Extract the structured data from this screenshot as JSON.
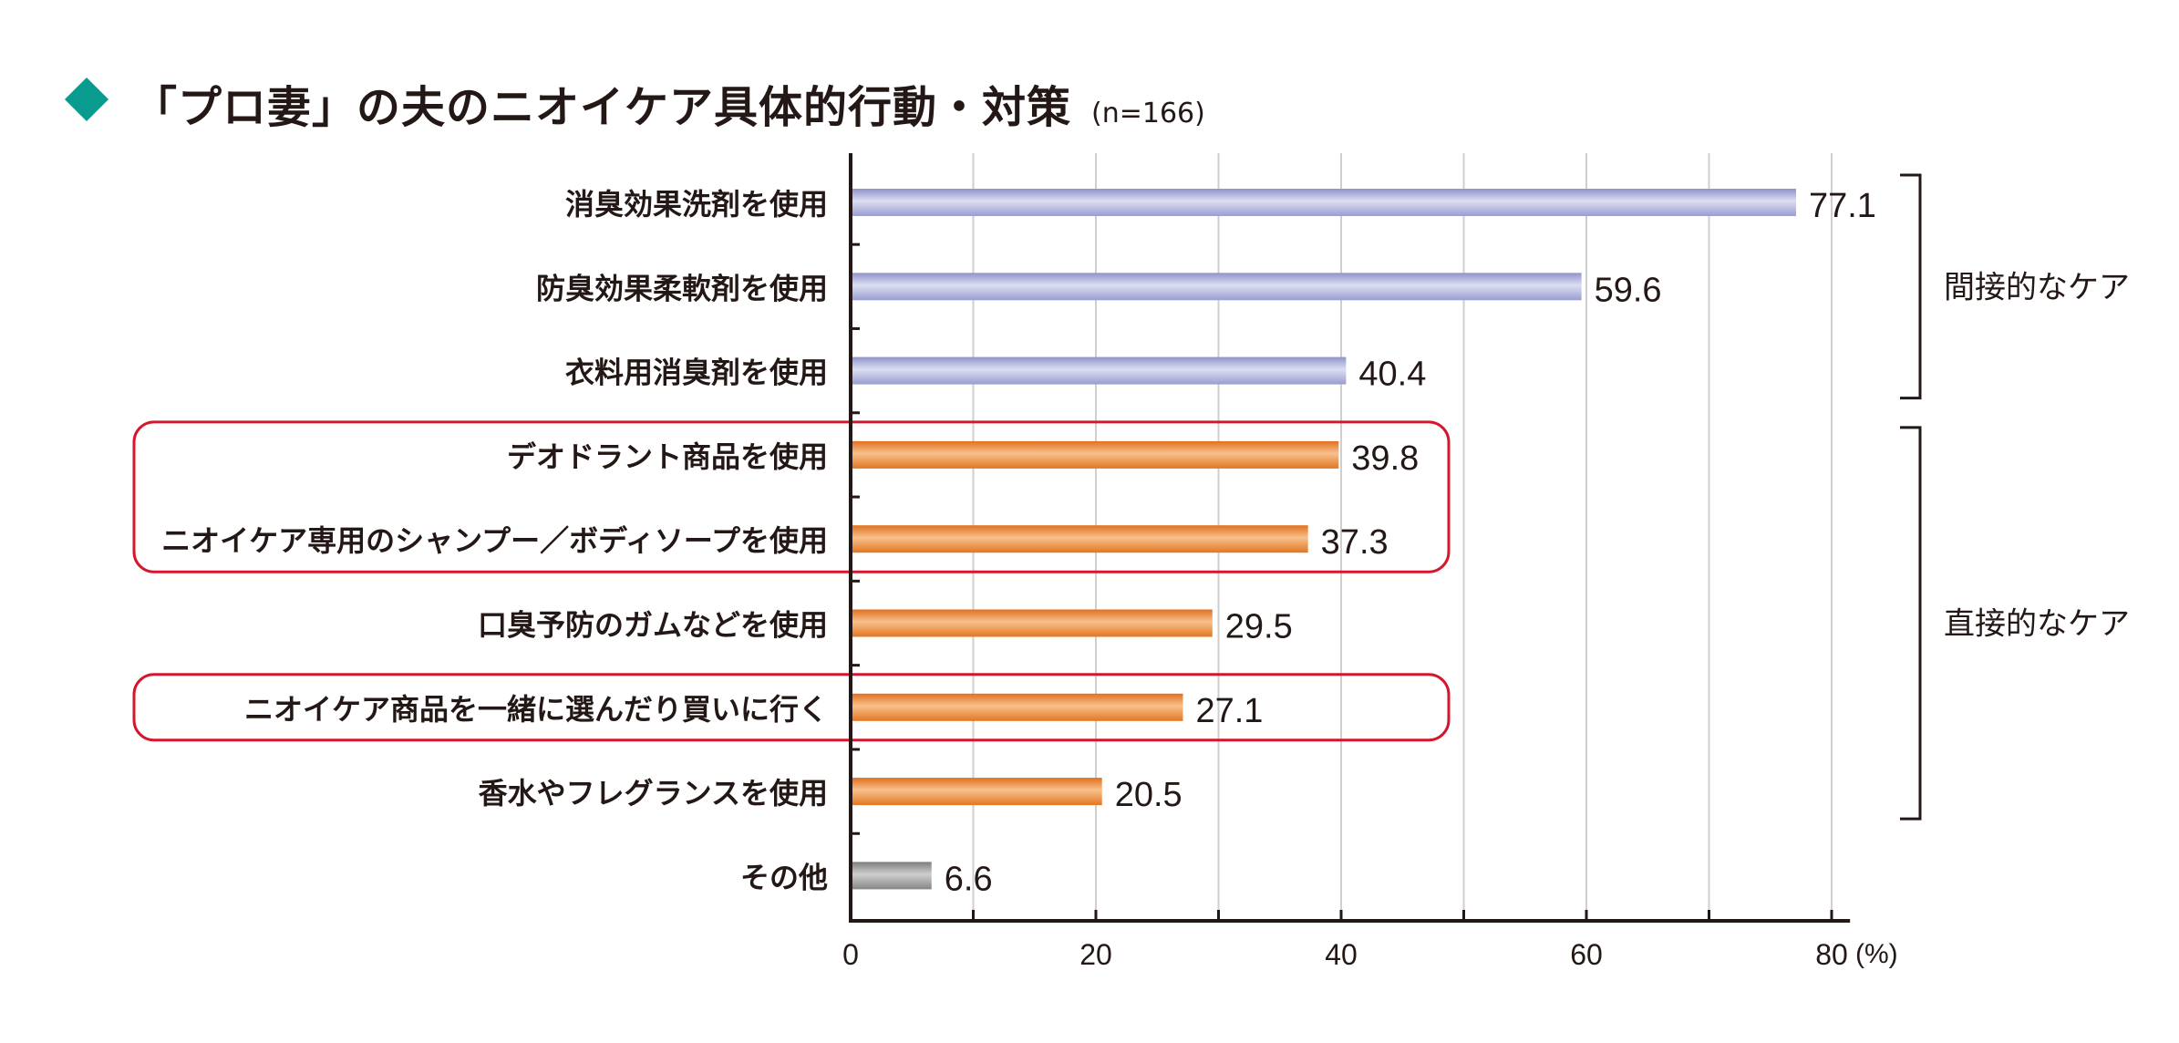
{
  "title": "「プロ妻」の夫のニオイケア具体的行動・対策",
  "sample_note": "(n=166)",
  "colors": {
    "indirect": "#aeb1dd",
    "direct": "#ee8a3c",
    "other": "#9a9a9a",
    "highlight_box": "#d5162c",
    "accent_diamond": "#0a9b8f"
  },
  "chart_data": {
    "type": "bar",
    "orientation": "horizontal",
    "categories": [
      "消臭効果洗剤を使用",
      "防臭効果柔軟剤を使用",
      "衣料用消臭剤を使用",
      "デオドラント商品を使用",
      "ニオイケア専用のシャンプー／ボディソープを使用",
      "口臭予防のガムなどを使用",
      "ニオイケア商品を一緒に選んだり買いに行く",
      "香水やフレグランスを使用",
      "その他"
    ],
    "values": [
      77.1,
      59.6,
      40.4,
      39.8,
      37.3,
      29.5,
      27.1,
      20.5,
      6.6
    ],
    "value_labels": [
      "77.1",
      "59.6",
      "40.4",
      "39.8",
      "37.3",
      "29.5",
      "27.1",
      "20.5",
      "6.6"
    ],
    "bar_groups": [
      "indirect",
      "indirect",
      "indirect",
      "direct",
      "direct",
      "direct",
      "direct",
      "direct",
      "other"
    ],
    "xlim": [
      0,
      85
    ],
    "x_ticks": [
      "0",
      "20",
      "40",
      "60",
      "80"
    ],
    "x_unit": "(%)",
    "grid": true,
    "brackets": [
      {
        "label": "間接的なケア",
        "from": 0,
        "to": 2
      },
      {
        "label": "直接的なケア",
        "from": 3,
        "to": 7
      }
    ],
    "highlighted_groups": [
      [
        3,
        4
      ],
      [
        6,
        6
      ]
    ]
  }
}
